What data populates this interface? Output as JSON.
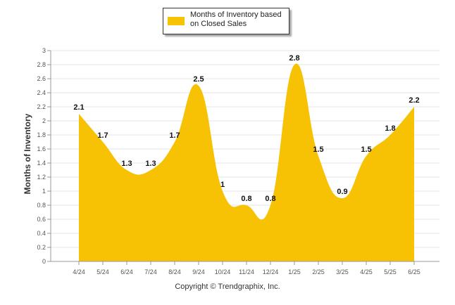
{
  "chart_data": {
    "type": "area",
    "categories": [
      "4/24",
      "5/24",
      "6/24",
      "7/24",
      "8/24",
      "9/24",
      "10/24",
      "11/24",
      "12/24",
      "1/25",
      "2/25",
      "3/25",
      "4/25",
      "5/25",
      "6/25"
    ],
    "series": [
      {
        "name": "Months of Inventory based on Closed Sales",
        "values": [
          2.1,
          1.7,
          1.3,
          1.3,
          1.7,
          2.5,
          1,
          0.8,
          0.8,
          2.8,
          1.5,
          0.9,
          1.5,
          1.8,
          2.2
        ],
        "labels": [
          "2.1",
          "1.7",
          "1.3",
          "1.3",
          "1.7",
          "2.5",
          "1",
          "0.8",
          "0.8",
          "2.8",
          "1.5",
          "0.9",
          "1.5",
          "1.8",
          "2.2"
        ],
        "color": "#F7C203"
      }
    ],
    "ylabel": "Months of Inventory",
    "xlabel": "",
    "ylim": [
      0,
      3
    ],
    "yticks": [
      "0",
      "0.2",
      "0.4",
      "0.6",
      "0.8",
      "1",
      "1.2",
      "1.4",
      "1.6",
      "1.8",
      "2",
      "2.2",
      "2.4",
      "2.6",
      "2.8",
      "3"
    ],
    "grid": true,
    "legend_position": "top-center"
  },
  "footer": {
    "copyright": "Copyright © Trendgraphix, Inc."
  }
}
